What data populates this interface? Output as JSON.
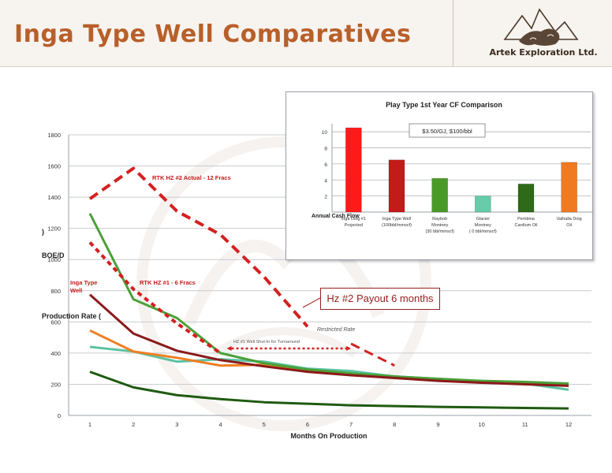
{
  "slide_title": "Inga Type Well Comparatives",
  "logo_text": "Artek Exploration Ltd.",
  "main_chart": {
    "type": "line",
    "y_axis": {
      "ticks": [
        0,
        200,
        400,
        600,
        800,
        1000,
        1200,
        1400,
        1600,
        1800
      ],
      "range": [
        0,
        1800
      ]
    },
    "x_axis": {
      "ticks": [
        1,
        2,
        3,
        4,
        5,
        6,
        7,
        8,
        9,
        10,
        11,
        12
      ],
      "range": [
        1,
        12
      ],
      "label": "Months On Production"
    },
    "y_label_parts": [
      "BOE/D",
      "Production Rate ("
    ],
    "y_label_stray": ")",
    "series": [
      {
        "name": "RTK HZ #2 Actual - 12 Fracs",
        "color": "#d42020",
        "dash": "long",
        "width": 4,
        "x": [
          1,
          2,
          3,
          4,
          5,
          6
        ],
        "y": [
          1390,
          1585,
          1310,
          1160,
          890,
          570
        ]
      },
      {
        "name": "RTK HZ #1 - 6 Fracs",
        "color": "#d42020",
        "dash": "short",
        "width": 4,
        "x": [
          1,
          2,
          3,
          4
        ],
        "y": [
          1110,
          810,
          590,
          400
        ]
      },
      {
        "color": "#d42020",
        "dash": "long",
        "width": 3,
        "x": [
          7,
          8
        ],
        "y": [
          460,
          320
        ]
      },
      {
        "name": "Inga Type Well",
        "color": "#8b1a1a",
        "dash": "none",
        "width": 3,
        "x": [
          1,
          2,
          3,
          4,
          5,
          6,
          7,
          8,
          9,
          10,
          11,
          12
        ],
        "y": [
          775,
          525,
          415,
          355,
          315,
          280,
          258,
          240,
          222,
          210,
          200,
          190
        ]
      },
      {
        "color": "#4aa038",
        "dash": "none",
        "width": 3,
        "x": [
          1,
          2,
          3,
          4,
          5,
          6,
          7,
          8,
          9,
          10,
          11,
          12
        ],
        "y": [
          1295,
          745,
          625,
          400,
          335,
          295,
          270,
          250,
          235,
          222,
          215,
          205
        ]
      },
      {
        "color": "#5cc2a2",
        "dash": "none",
        "width": 3,
        "x": [
          1,
          2,
          3,
          4,
          5,
          6,
          7,
          8,
          9,
          10,
          11,
          12
        ],
        "y": [
          440,
          410,
          345,
          360,
          345,
          300,
          285,
          250,
          235,
          220,
          205,
          165
        ]
      },
      {
        "color": "#ef7f23",
        "dash": "none",
        "width": 3,
        "x": [
          1,
          2,
          3,
          4,
          5,
          6,
          7,
          8,
          9,
          10,
          11,
          12
        ],
        "y": [
          545,
          410,
          370,
          320,
          325,
          290,
          265,
          245,
          230,
          220,
          210,
          200
        ]
      },
      {
        "color": "#1f5a10",
        "dash": "none",
        "width": 3,
        "x": [
          1,
          2,
          3,
          4,
          5,
          6,
          7,
          8,
          9,
          10,
          11,
          12
        ],
        "y": [
          280,
          180,
          130,
          105,
          85,
          75,
          65,
          60,
          55,
          52,
          48,
          45
        ]
      }
    ],
    "labels": {
      "hz2": "RTK HZ #2 Actual - 12 Fracs",
      "hz1": "RTK HZ #1 - 6 Fracs",
      "type_well_1": "Inga Type",
      "type_well_2": "Well",
      "restricted": "Restricted Rate",
      "shut_in": "HZ #1 Well Shut-In for Turnaround",
      "annual_cf": "Annual Cash Flow"
    },
    "shut_in_range": {
      "x": [
        4,
        7
      ],
      "y": 430
    }
  },
  "callout_text": "Hz #2 Payout 6 months",
  "inset_chart": {
    "type": "bar",
    "title": "Play Type 1st Year CF Comparison",
    "subtitle": "$3.50/GJ, $100/bbl",
    "y_ticks": [
      2,
      4,
      6,
      8,
      10
    ],
    "ylim": [
      0,
      11
    ],
    "categories": [
      [
        "Inga Doig #1",
        "Projected"
      ],
      [
        "Inga Type Well",
        "(100bbl/mmscf)"
      ],
      [
        "Raybob",
        "Montney",
        "(30 bbl/mmscf)"
      ],
      [
        "Glacier",
        "Montney",
        "( 0 bbl/mmscf)"
      ],
      [
        "Pembina",
        "Cardium Oil"
      ],
      [
        "Valhalla Doig",
        "Oil"
      ]
    ],
    "values": [
      10.5,
      6.5,
      4.2,
      2.0,
      3.5,
      6.2
    ],
    "colors": [
      "#ff1a1a",
      "#c41a1a",
      "#4a9a28",
      "#66ccaa",
      "#2e6a18",
      "#f07a20"
    ]
  }
}
